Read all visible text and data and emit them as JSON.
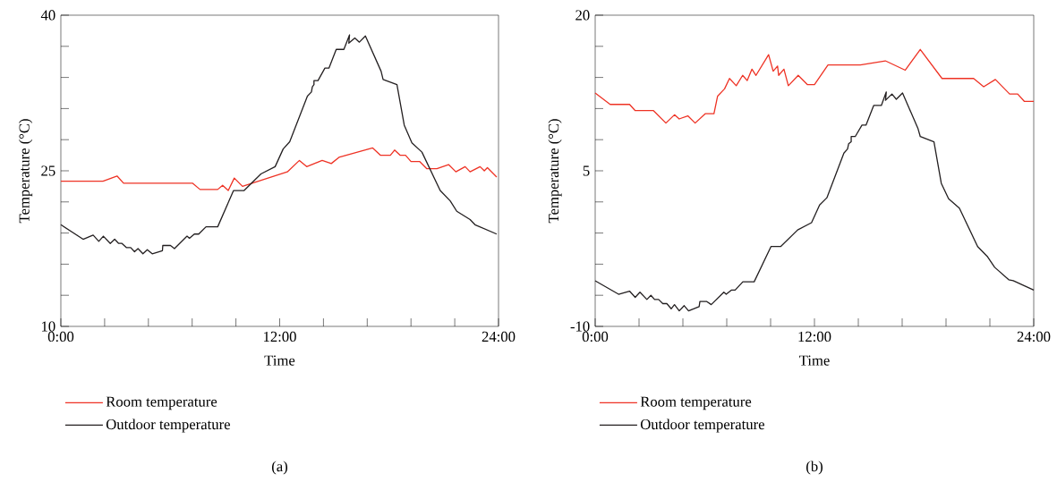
{
  "chart_data": [
    {
      "type": "line",
      "xlabel": "Time",
      "ylabel": "Temperature (°C)",
      "annotations": [
        "(a)"
      ],
      "legend": "bottom",
      "marker": "none",
      "line_style": "solid",
      "grid": false,
      "xlim": [
        0,
        24
      ],
      "ylim": [
        10,
        40
      ],
      "xticks": [
        {
          "value": 0,
          "label": "0:00"
        },
        {
          "value": 2.4,
          "label": null
        },
        {
          "value": 4.8,
          "label": null
        },
        {
          "value": 7.2,
          "label": null
        },
        {
          "value": 9.6,
          "label": null
        },
        {
          "value": 12,
          "label": "12:00"
        },
        {
          "value": 14.4,
          "label": null
        },
        {
          "value": 16.8,
          "label": null
        },
        {
          "value": 19.2,
          "label": null
        },
        {
          "value": 21.6,
          "label": null
        },
        {
          "value": 24,
          "label": "24:00"
        }
      ],
      "yticks": [
        10,
        {
          "value": 13,
          "label": null
        },
        {
          "value": 16,
          "label": null
        },
        {
          "value": 19,
          "label": null
        },
        {
          "value": 22,
          "label": null
        },
        25,
        {
          "value": 28,
          "label": null
        },
        {
          "value": 31,
          "label": null
        },
        {
          "value": 34,
          "label": null
        },
        {
          "value": 37,
          "label": null
        },
        40
      ],
      "series": [
        {
          "name": "Room temperature",
          "color": "#ee3224",
          "x": [
            0,
            2.31,
            3.08,
            3.44,
            7.23,
            7.63,
            8.6,
            8.87,
            9.18,
            9.51,
            9.96,
            12.42,
            13.08,
            13.48,
            14.33,
            14.83,
            15.25,
            17.1,
            17.52,
            18.07,
            18.3,
            18.6,
            18.9,
            19.2,
            19.67,
            20.07,
            20.62,
            21.26,
            21.66,
            22.17,
            22.44,
            22.99,
            23.22,
            23.39,
            23.9
          ],
          "values": [
            24.0,
            24.0,
            24.5,
            23.8,
            23.8,
            23.2,
            23.2,
            23.6,
            23.1,
            24.3,
            23.5,
            24.9,
            26.0,
            25.4,
            26.0,
            25.7,
            26.3,
            27.2,
            26.5,
            26.5,
            27.0,
            26.5,
            26.5,
            25.9,
            25.9,
            25.2,
            25.2,
            25.6,
            24.9,
            25.4,
            24.9,
            25.4,
            25.0,
            25.3,
            24.4
          ]
        },
        {
          "name": "Outdoor temperature",
          "color": "#231f20",
          "x": [
            0,
            1.22,
            1.77,
            2.08,
            2.33,
            2.71,
            2.95,
            3.17,
            3.35,
            3.59,
            3.83,
            4.04,
            4.23,
            4.5,
            4.74,
            5.01,
            5.57,
            5.59,
            6.01,
            6.23,
            6.92,
            7.05,
            7.32,
            7.56,
            7.96,
            8.6,
            9.47,
            10.05,
            10.97,
            11.75,
            12.19,
            12.55,
            13.52,
            13.74,
            13.79,
            13.88,
            13.88,
            14.1,
            14.48,
            14.7,
            15.1,
            15.52,
            15.83,
            15.79,
            16.12,
            16.37,
            16.7,
            17.56,
            17.67,
            18.43,
            18.83,
            19.25,
            19.8,
            20.8,
            21.35,
            21.71,
            22.44,
            22.71,
            23.9
          ],
          "values": [
            19.8,
            18.4,
            18.8,
            18.2,
            18.7,
            18.0,
            18.4,
            18.0,
            18.0,
            17.6,
            17.6,
            17.2,
            17.5,
            17.0,
            17.4,
            17.0,
            17.3,
            17.8,
            17.8,
            17.5,
            18.7,
            18.5,
            18.9,
            18.9,
            19.6,
            19.6,
            23.1,
            23.1,
            24.7,
            25.4,
            27.1,
            27.8,
            32.2,
            32.6,
            33.1,
            33.3,
            33.7,
            33.7,
            34.9,
            34.9,
            36.7,
            36.7,
            38.1,
            37.3,
            37.8,
            37.4,
            38.0,
            34.6,
            33.8,
            33.3,
            29.4,
            27.7,
            26.8,
            23.1,
            22.1,
            21.1,
            20.3,
            19.8,
            18.9
          ]
        }
      ]
    },
    {
      "type": "line",
      "xlabel": "Time",
      "ylabel": "Temperature (°C)",
      "annotations": [
        "(b)"
      ],
      "legend": "bottom",
      "marker": "none",
      "line_style": "solid",
      "grid": false,
      "xlim": [
        0,
        24
      ],
      "ylim": [
        -10,
        20
      ],
      "xticks": [
        {
          "value": 0,
          "label": "0:00"
        },
        {
          "value": 2.4,
          "label": null
        },
        {
          "value": 4.8,
          "label": null
        },
        {
          "value": 7.2,
          "label": null
        },
        {
          "value": 9.6,
          "label": null
        },
        {
          "value": 12,
          "label": "12:00"
        },
        {
          "value": 14.4,
          "label": null
        },
        {
          "value": 16.8,
          "label": null
        },
        {
          "value": 19.2,
          "label": null
        },
        {
          "value": 21.6,
          "label": null
        },
        {
          "value": 24,
          "label": "24:00"
        }
      ],
      "yticks": [
        -10,
        {
          "value": -7,
          "label": null
        },
        {
          "value": -4,
          "label": null
        },
        {
          "value": -1,
          "label": null
        },
        {
          "value": 2,
          "label": null
        },
        5,
        {
          "value": 8,
          "label": null
        },
        {
          "value": 11,
          "label": null
        },
        {
          "value": 14,
          "label": null
        },
        {
          "value": 17,
          "label": null
        },
        20
      ],
      "series": [
        {
          "name": "Room temperature",
          "color": "#ee3224",
          "x": [
            0,
            0.82,
            1.88,
            2.19,
            3.19,
            3.87,
            4.34,
            4.6,
            5.07,
            5.47,
            6.02,
            6.5,
            6.7,
            7.08,
            7.35,
            7.72,
            8.07,
            8.32,
            8.58,
            8.8,
            9.49,
            9.74,
            9.98,
            10.04,
            10.33,
            10.57,
            11.11,
            11.62,
            12.0,
            12.74,
            14.51,
            15.88,
            16.97,
            17.79,
            18.98,
            20.71,
            21.26,
            21.9,
            22.68,
            23.12,
            23.48,
            24
          ],
          "values": [
            12.5,
            11.4,
            11.4,
            10.8,
            10.8,
            9.6,
            10.4,
            10.0,
            10.3,
            9.6,
            10.5,
            10.5,
            12.2,
            12.9,
            13.9,
            13.2,
            14.2,
            13.7,
            14.8,
            14.2,
            16.2,
            14.6,
            15.1,
            14.2,
            14.8,
            13.2,
            14.2,
            13.3,
            13.3,
            15.2,
            15.2,
            15.6,
            14.7,
            16.7,
            13.9,
            13.9,
            13.1,
            13.8,
            12.4,
            12.4,
            11.7,
            11.7
          ]
        },
        {
          "name": "Outdoor temperature",
          "color": "#231f20",
          "x": [
            0,
            1.28,
            1.88,
            2.19,
            2.45,
            2.83,
            3.05,
            3.25,
            3.47,
            3.7,
            3.92,
            4.16,
            4.34,
            4.6,
            4.87,
            5.11,
            5.69,
            5.73,
            6.11,
            6.35,
            7.04,
            7.17,
            7.45,
            7.66,
            8.08,
            8.7,
            9.62,
            10.15,
            11.08,
            11.84,
            12.28,
            12.68,
            13.61,
            13.81,
            13.87,
            14.01,
            14.01,
            14.23,
            14.6,
            14.82,
            15.24,
            15.66,
            15.93,
            15.89,
            16.24,
            16.48,
            16.82,
            17.66,
            17.79,
            18.54,
            18.94,
            19.34,
            19.93,
            20.93,
            21.48,
            21.86,
            22.63,
            22.88,
            24
          ],
          "values": [
            -5.6,
            -6.9,
            -6.6,
            -7.2,
            -6.7,
            -7.4,
            -7.0,
            -7.4,
            -7.4,
            -7.8,
            -7.8,
            -8.3,
            -7.9,
            -8.5,
            -8.0,
            -8.5,
            -8.1,
            -7.6,
            -7.6,
            -7.9,
            -6.7,
            -6.9,
            -6.5,
            -6.5,
            -5.7,
            -5.7,
            -2.3,
            -2.3,
            -0.7,
            0.0,
            1.7,
            2.4,
            6.7,
            7.1,
            7.6,
            7.8,
            8.3,
            8.3,
            9.4,
            9.4,
            11.3,
            11.3,
            12.6,
            11.8,
            12.4,
            11.9,
            12.5,
            9.1,
            8.3,
            7.8,
            3.8,
            2.3,
            1.4,
            -2.3,
            -3.3,
            -4.3,
            -5.5,
            -5.6,
            -6.5
          ]
        }
      ]
    }
  ]
}
